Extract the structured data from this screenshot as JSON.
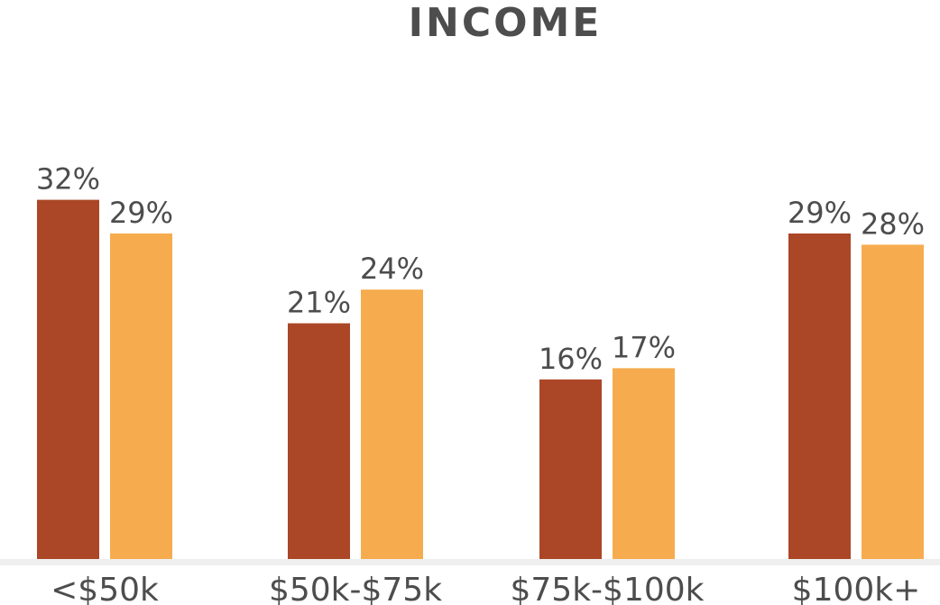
{
  "chart_data": {
    "type": "bar",
    "title": "INCOME",
    "categories": [
      "<$50k",
      "$50k-$75k",
      "$75k-$100k",
      "$100k+"
    ],
    "series": [
      {
        "values": [
          32,
          21,
          16,
          29
        ],
        "labels": [
          "32%",
          "21%",
          "16%",
          "29%"
        ],
        "color": "#ab4726"
      },
      {
        "values": [
          29,
          24,
          17,
          28
        ],
        "labels": [
          "29%",
          "24%",
          "17%",
          "28%"
        ],
        "color": "#f6ac4e"
      }
    ],
    "ylim": [
      0,
      35
    ],
    "grid": false,
    "legend": "none",
    "axis_color": "#efefef"
  }
}
